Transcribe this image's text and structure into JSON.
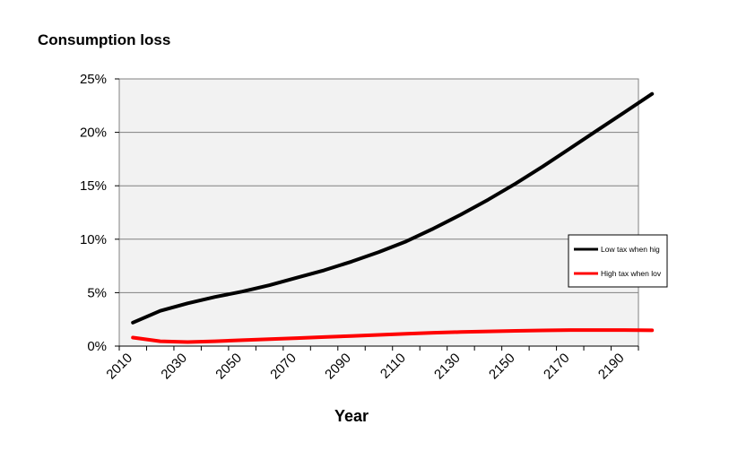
{
  "chart_data": {
    "type": "line",
    "title": "Consumption loss",
    "xlabel": "Year",
    "ylabel": "",
    "x_ticks": [
      "2010",
      "2030",
      "2050",
      "2070",
      "2090",
      "2110",
      "2130",
      "2150",
      "2170",
      "2190"
    ],
    "y_ticks": [
      "0%",
      "5%",
      "10%",
      "15%",
      "20%",
      "25%"
    ],
    "ylim": [
      0,
      25
    ],
    "xlim": [
      2010,
      2200
    ],
    "grid": true,
    "legend_position": "right",
    "x": [
      2015,
      2025,
      2035,
      2045,
      2055,
      2065,
      2075,
      2085,
      2095,
      2105,
      2115,
      2125,
      2135,
      2145,
      2155,
      2165,
      2175,
      2185,
      2195,
      2205
    ],
    "series": [
      {
        "name": "Low tax when hig",
        "color": "#000000",
        "values": [
          2.2,
          3.3,
          4.0,
          4.6,
          5.1,
          5.7,
          6.4,
          7.1,
          7.9,
          8.8,
          9.8,
          11.0,
          12.3,
          13.7,
          15.2,
          16.8,
          18.5,
          20.2,
          21.9,
          23.6
        ]
      },
      {
        "name": "High tax when lov",
        "color": "#ff0000",
        "values": [
          0.8,
          0.45,
          0.38,
          0.45,
          0.55,
          0.65,
          0.75,
          0.85,
          0.95,
          1.05,
          1.15,
          1.25,
          1.32,
          1.38,
          1.43,
          1.47,
          1.5,
          1.5,
          1.5,
          1.48
        ]
      }
    ]
  }
}
